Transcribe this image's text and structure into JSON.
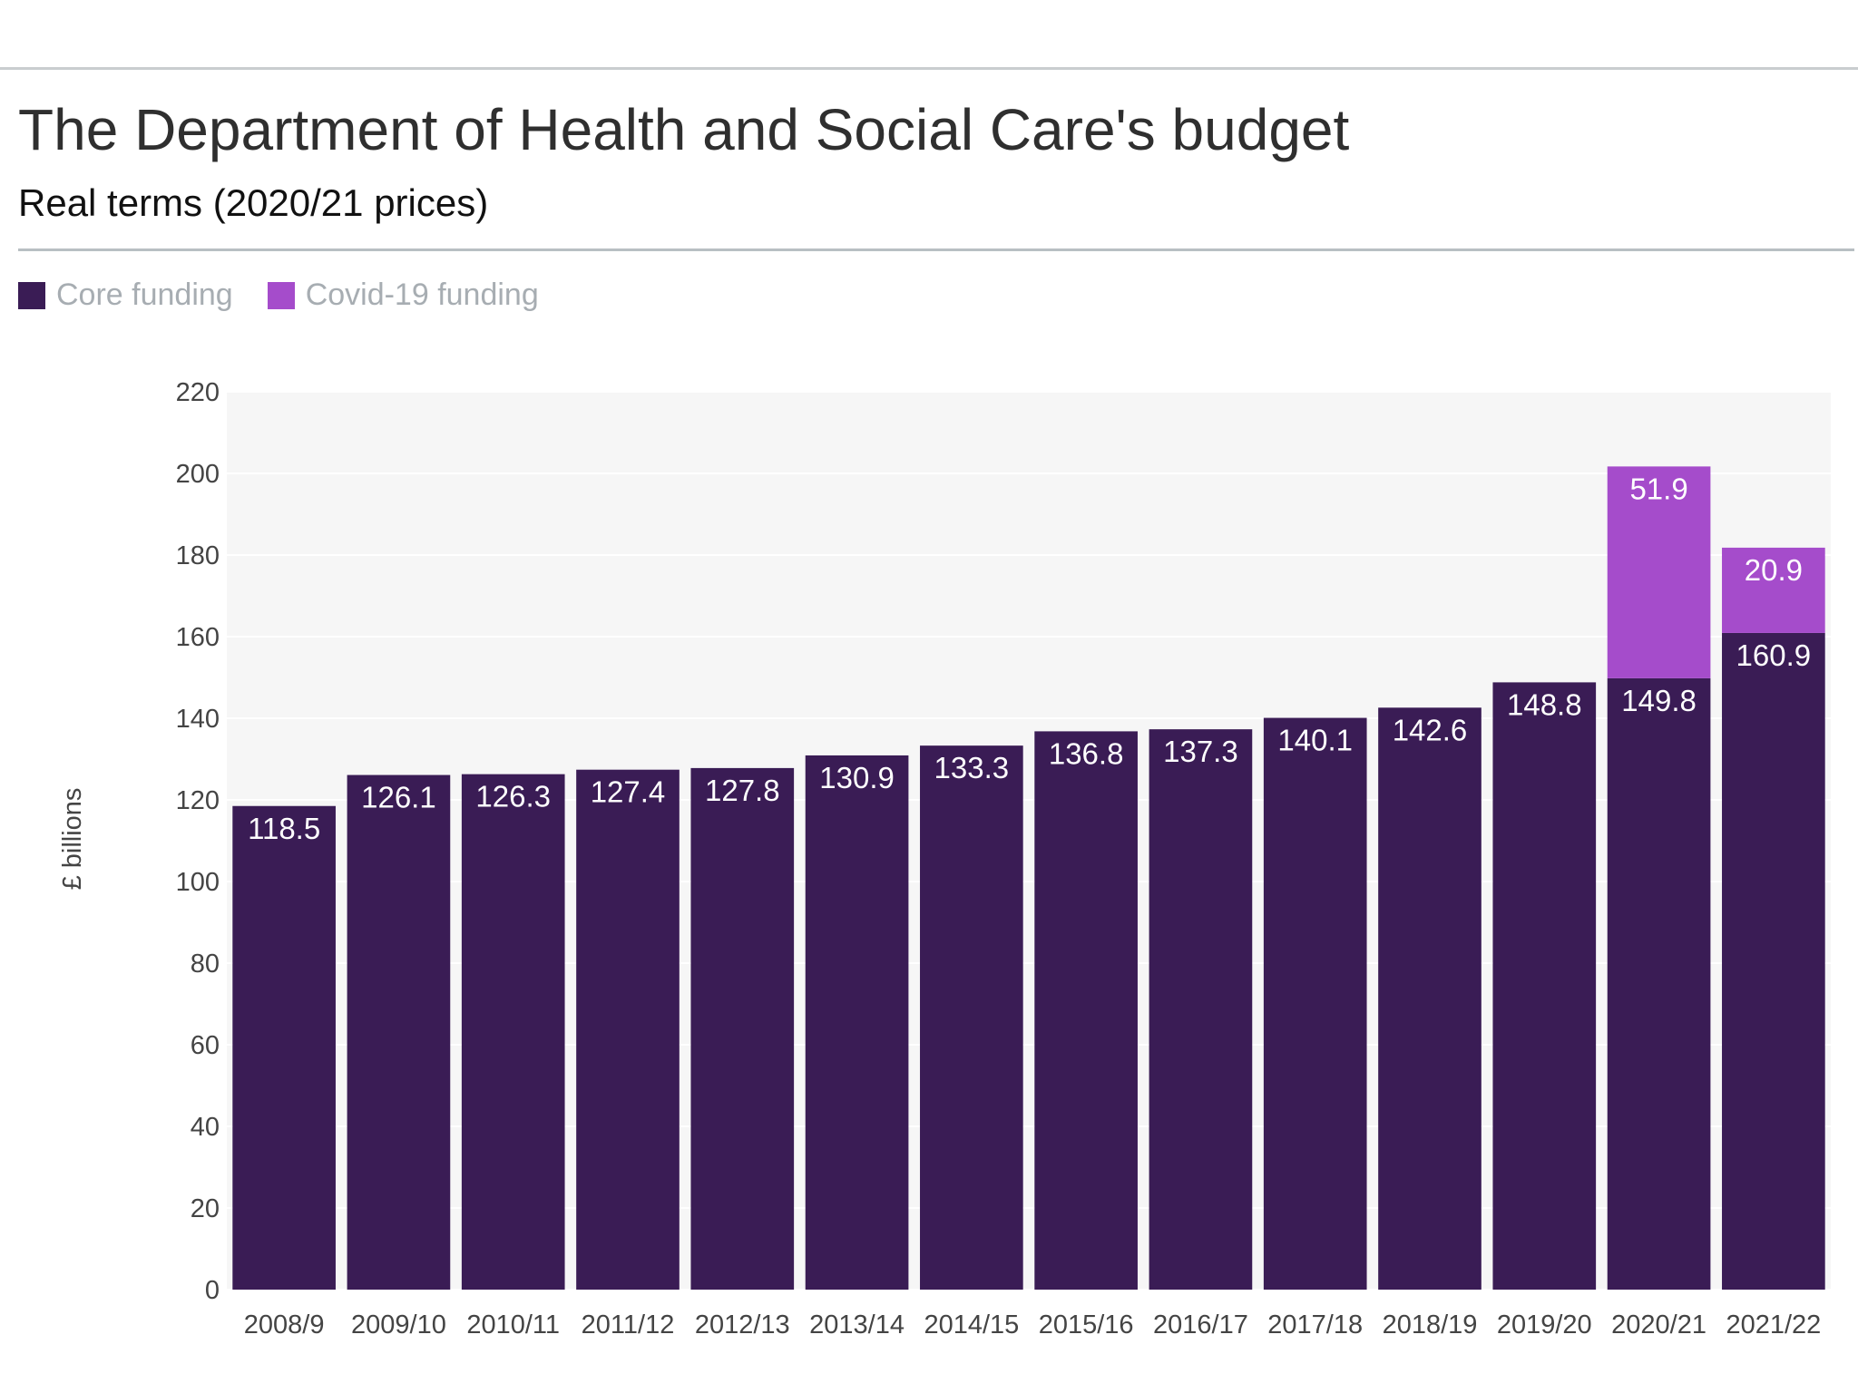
{
  "header": {
    "title": "The Department of Health and Social Care's budget",
    "subtitle": "Real terms (2020/21 prices)"
  },
  "legend": [
    {
      "label": "Core funding",
      "color": "#3a1c55"
    },
    {
      "label": "Covid-19 funding",
      "color": "#a54ccb"
    }
  ],
  "chart_data": {
    "type": "bar",
    "stacked": true,
    "title": "The Department of Health and Social Care's budget",
    "subtitle": "Real terms (2020/21 prices)",
    "ylabel": "£ billions",
    "xlabel": "",
    "ylim": [
      0,
      220
    ],
    "yticks": [
      0,
      20,
      40,
      60,
      80,
      100,
      120,
      140,
      160,
      180,
      200,
      220
    ],
    "grid": true,
    "legend_position": "top-left",
    "categories": [
      "2008/9",
      "2009/10",
      "2010/11",
      "2011/12",
      "2012/13",
      "2013/14",
      "2014/15",
      "2015/16",
      "2016/17",
      "2017/18",
      "2018/19",
      "2019/20",
      "2020/21",
      "2021/22"
    ],
    "series": [
      {
        "name": "Core funding",
        "color": "#3a1c55",
        "values": [
          118.5,
          126.1,
          126.3,
          127.4,
          127.8,
          130.9,
          133.3,
          136.8,
          137.3,
          140.1,
          142.6,
          148.8,
          149.8,
          160.9
        ]
      },
      {
        "name": "Covid-19 funding",
        "color": "#a54ccb",
        "values": [
          null,
          null,
          null,
          null,
          null,
          null,
          null,
          null,
          null,
          null,
          null,
          null,
          51.9,
          20.9
        ]
      }
    ]
  }
}
